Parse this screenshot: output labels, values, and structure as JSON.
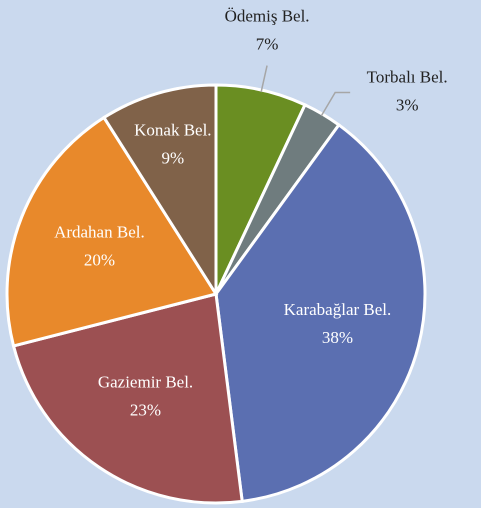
{
  "chart_data": {
    "type": "pie",
    "categories": [
      "Ödemiş Bel.",
      "Torbalı Bel.",
      "Karabağlar Bel.",
      "Gaziemir Bel.",
      "Ardahan Bel.",
      "Konak Bel."
    ],
    "values": [
      7,
      3,
      38,
      23,
      20,
      9
    ],
    "value_labels": [
      "7%",
      "3%",
      "38%",
      "23%",
      "20%",
      "9%"
    ],
    "colors": [
      "#6a8e22",
      "#6f7c7e",
      "#5b6fb1",
      "#9c5052",
      "#e8892b",
      "#806249"
    ]
  }
}
